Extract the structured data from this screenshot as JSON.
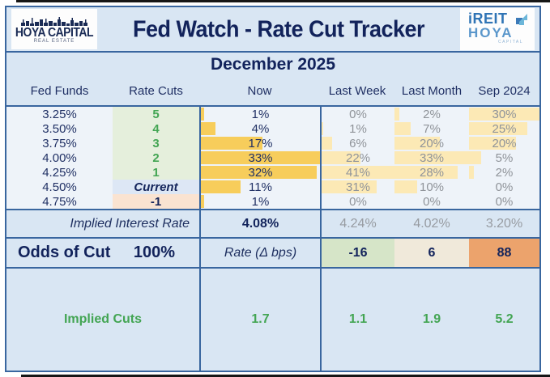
{
  "header": {
    "title": "Fed Watch - Rate Cut Tracker",
    "hoya_logo": {
      "name": "HOYA CAPITAL",
      "subtitle": "REAL ESTATE"
    },
    "ireit_logo": {
      "line1": "iREIT",
      "line2": "HOYA",
      "line3": "CAPITAL"
    }
  },
  "month_title": "December 2025",
  "columns": [
    "Fed Funds",
    "Rate Cuts",
    "Now",
    "Last Week",
    "Last Month",
    "Sep 2024"
  ],
  "rows": [
    {
      "fed_funds": "3.25%",
      "rate_cuts": "5",
      "cuts_style": "green",
      "now": 1,
      "last_week": 0,
      "last_month": 2,
      "sep_2024": 30
    },
    {
      "fed_funds": "3.50%",
      "rate_cuts": "4",
      "cuts_style": "green",
      "now": 4,
      "last_week": 1,
      "last_month": 7,
      "sep_2024": 25
    },
    {
      "fed_funds": "3.75%",
      "rate_cuts": "3",
      "cuts_style": "green",
      "now": 17,
      "last_week": 6,
      "last_month": 20,
      "sep_2024": 20
    },
    {
      "fed_funds": "4.00%",
      "rate_cuts": "2",
      "cuts_style": "green",
      "now": 33,
      "last_week": 22,
      "last_month": 33,
      "sep_2024": 5
    },
    {
      "fed_funds": "4.25%",
      "rate_cuts": "1",
      "cuts_style": "green",
      "now": 32,
      "last_week": 41,
      "last_month": 28,
      "sep_2024": 2
    },
    {
      "fed_funds": "4.50%",
      "rate_cuts": "Current",
      "cuts_style": "current",
      "now": 11,
      "last_week": 31,
      "last_month": 10,
      "sep_2024": 0
    },
    {
      "fed_funds": "4.75%",
      "rate_cuts": "-1",
      "cuts_style": "neg",
      "now": 1,
      "last_week": 0,
      "last_month": 0,
      "sep_2024": 0
    }
  ],
  "footer": {
    "implied_rate_label": "Implied Interest Rate",
    "implied_rates": {
      "now": "4.08%",
      "last_week": "4.24%",
      "last_month": "4.02%",
      "sep_2024": "3.20%"
    },
    "odds_label": "Odds of Cut",
    "odds_value": "100%",
    "rate_delta_label": "Rate (Δ bps)",
    "rate_delta": {
      "last_week": "-16",
      "last_month": "6",
      "sep_2024": "88"
    },
    "implied_cuts_label": "Implied Cuts",
    "implied_cuts": {
      "now": "1.7",
      "last_week": "1.1",
      "last_month": "1.9",
      "sep_2024": "5.2"
    }
  },
  "colors": {
    "navy_text": "#12235b",
    "border_blue": "#39669f",
    "band_blue": "#d9e6f3",
    "data_bg": "#eef3f9",
    "gold_bar": "#f7cd5b",
    "pale_yellow_bar": "#fce9b5",
    "green_text": "#43a553",
    "green_col_bg": "#e5efdc",
    "current_cell_bg": "#dde7f5",
    "neg_cell_bg": "#fae3d1",
    "gray_text": "#8f9399",
    "delta_green_bg": "#d6e5c8",
    "delta_cream_bg": "#f0e9da",
    "delta_orange_bg": "#eca36c"
  },
  "chart_data": {
    "type": "table",
    "title": "Fed Watch - Rate Cut Tracker",
    "subtitle": "December 2025",
    "columns": [
      "Fed Funds",
      "Rate Cuts",
      "Now",
      "Last Week",
      "Last Month",
      "Sep 2024"
    ],
    "probability_unit": "%",
    "rows": [
      [
        "3.25%",
        "5",
        1,
        0,
        2,
        30
      ],
      [
        "3.50%",
        "4",
        4,
        1,
        7,
        25
      ],
      [
        "3.75%",
        "3",
        17,
        6,
        20,
        20
      ],
      [
        "4.00%",
        "2",
        33,
        22,
        33,
        5
      ],
      [
        "4.25%",
        "1",
        32,
        41,
        28,
        2
      ],
      [
        "4.50%",
        "Current",
        11,
        31,
        10,
        0
      ],
      [
        "4.75%",
        "-1",
        1,
        0,
        0,
        0
      ]
    ],
    "implied_interest_rate": {
      "now": 4.08,
      "last_week": 4.24,
      "last_month": 4.02,
      "sep_2024": 3.2
    },
    "odds_of_cut_pct": 100,
    "rate_delta_bps": {
      "last_week": -16,
      "last_month": 6,
      "sep_2024": 88
    },
    "implied_cuts": {
      "now": 1.7,
      "last_week": 1.1,
      "last_month": 1.9,
      "sep_2024": 5.2
    },
    "layout_hints": "Yellow in-cell data bars scaled to each column's maximum value"
  }
}
